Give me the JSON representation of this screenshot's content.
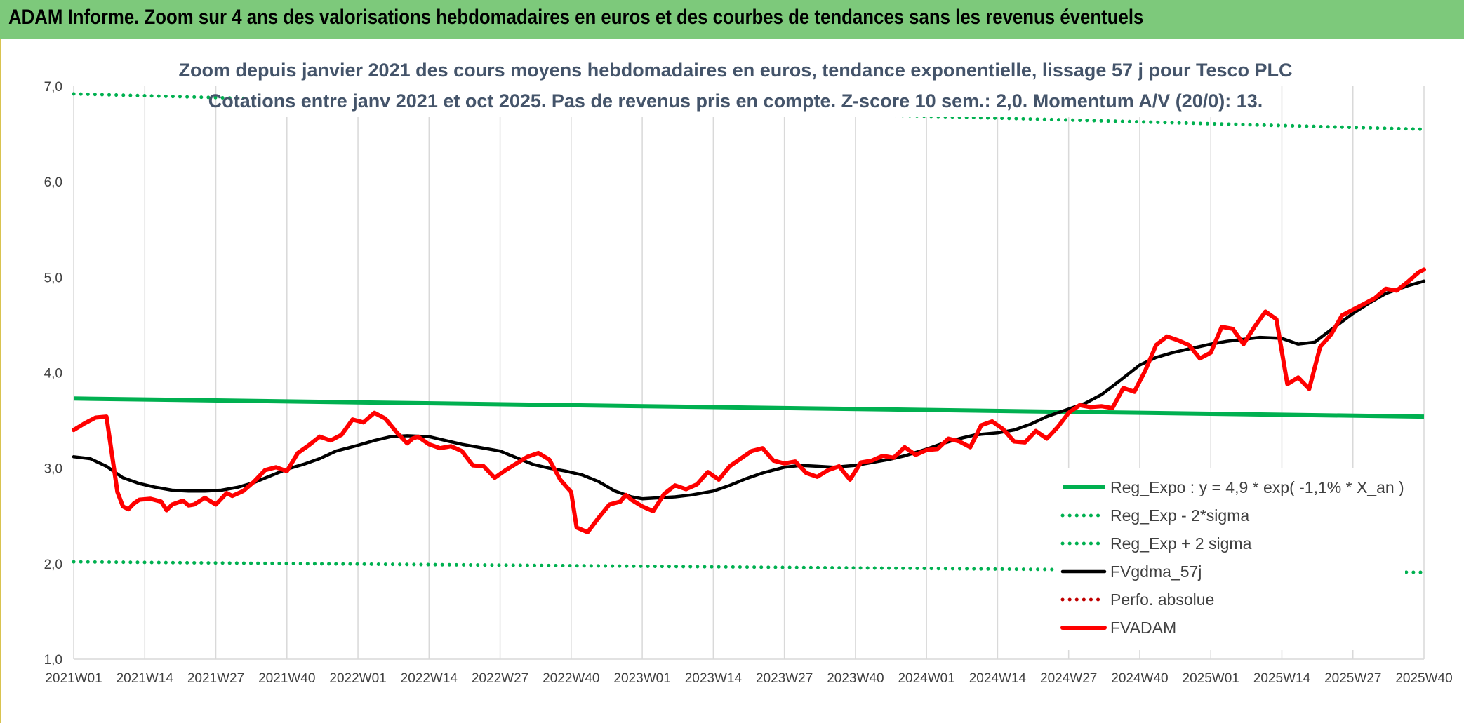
{
  "header": {
    "title": "ADAM Informe. Zoom sur 4 ans des valorisations hebdomadaires en euros et des courbes de tendances sans les revenus éventuels"
  },
  "chart_data": {
    "type": "line",
    "title_line1": "Zoom depuis janvier 2021 des cours moyens hebdomadaires en euros, tendance exponentielle, lissage 57 j pour Tesco PLC",
    "title_line2": "Cotations entre janv 2021 et oct 2025. Pas de revenus pris en compte. Z-score 10 sem.: 2,0. Momentum A/V (20/0): 13.",
    "ylim": [
      1.0,
      7.0
    ],
    "y_ticks": [
      "1,0",
      "2,0",
      "3,0",
      "4,0",
      "5,0",
      "6,0",
      "7,0"
    ],
    "x_ticks": [
      "2021W01",
      "2021W14",
      "2021W27",
      "2021W40",
      "2022W01",
      "2022W14",
      "2022W27",
      "2022W40",
      "2023W01",
      "2023W14",
      "2023W27",
      "2023W40",
      "2024W01",
      "2024W14",
      "2024W27",
      "2024W40",
      "2025W01",
      "2025W14",
      "2025W27",
      "2025W40"
    ],
    "x_range_weeks": [
      0,
      247
    ],
    "gridlines_vertical": true,
    "legend_position": "right",
    "series": [
      {
        "name": "Reg_Expo : y = 4,9 * exp( -1,1% *  X_an )",
        "color": "#00b050",
        "style": "solid-thick",
        "x": [
          0,
          247
        ],
        "y": [
          3.73,
          3.54
        ]
      },
      {
        "name": "Reg_Exp - 2*sigma",
        "color": "#00b050",
        "style": "dotted",
        "x": [
          0,
          247
        ],
        "y": [
          2.02,
          1.91
        ]
      },
      {
        "name": "Reg_Exp + 2 sigma",
        "color": "#00b050",
        "style": "dotted",
        "x": [
          0,
          247
        ],
        "y": [
          6.92,
          6.55
        ]
      },
      {
        "name": "FVgdma_57j",
        "color": "#000000",
        "style": "solid",
        "x": [
          0,
          3,
          6,
          9,
          12,
          15,
          18,
          21,
          24,
          27,
          30,
          33,
          36,
          39,
          42,
          45,
          48,
          52,
          55,
          58,
          61,
          65,
          68,
          71,
          74,
          78,
          81,
          84,
          87,
          90,
          93,
          96,
          99,
          102,
          104,
          107,
          110,
          113,
          117,
          120,
          123,
          126,
          130,
          133,
          136,
          139,
          143,
          146,
          149,
          152,
          156,
          159,
          162,
          165,
          169,
          172,
          175,
          178,
          182,
          185,
          188,
          191,
          195,
          198,
          201,
          204,
          208,
          211,
          214,
          217,
          221,
          224,
          227,
          230,
          234,
          237,
          240,
          244,
          247
        ],
        "y": [
          3.12,
          3.1,
          3.02,
          2.9,
          2.84,
          2.8,
          2.77,
          2.76,
          2.76,
          2.77,
          2.8,
          2.85,
          2.92,
          2.99,
          3.04,
          3.1,
          3.18,
          3.24,
          3.29,
          3.33,
          3.34,
          3.33,
          3.29,
          3.25,
          3.22,
          3.18,
          3.11,
          3.04,
          3.0,
          2.97,
          2.93,
          2.86,
          2.76,
          2.7,
          2.68,
          2.69,
          2.7,
          2.72,
          2.76,
          2.82,
          2.89,
          2.95,
          3.01,
          3.03,
          3.02,
          3.01,
          3.03,
          3.06,
          3.09,
          3.13,
          3.2,
          3.26,
          3.31,
          3.35,
          3.37,
          3.4,
          3.46,
          3.54,
          3.62,
          3.68,
          3.77,
          3.9,
          4.08,
          4.16,
          4.21,
          4.25,
          4.3,
          4.33,
          4.35,
          4.37,
          4.36,
          4.3,
          4.32,
          4.45,
          4.62,
          4.73,
          4.83,
          4.91,
          4.96
        ]
      },
      {
        "name": "Perfo. absolue",
        "color": "#c00000",
        "style": "dotted",
        "x": [],
        "y": []
      },
      {
        "name": "FVADAM",
        "color": "#ff0000",
        "style": "solid-thick",
        "x": [
          0,
          2,
          4,
          6,
          8,
          9,
          10,
          11,
          12,
          14,
          16,
          17,
          18,
          20,
          21,
          22,
          24,
          26,
          28,
          29,
          31,
          33,
          35,
          37,
          39,
          41,
          43,
          45,
          47,
          49,
          51,
          53,
          55,
          57,
          59,
          61,
          62,
          63,
          65,
          67,
          69,
          71,
          73,
          75,
          77,
          79,
          81,
          83,
          85,
          87,
          89,
          91,
          92,
          94,
          96,
          98,
          100,
          101,
          102,
          104,
          106,
          108,
          110,
          112,
          114,
          116,
          118,
          120,
          122,
          124,
          126,
          128,
          130,
          132,
          134,
          136,
          138,
          140,
          142,
          144,
          146,
          148,
          150,
          152,
          154,
          156,
          158,
          160,
          162,
          164,
          166,
          168,
          170,
          172,
          174,
          176,
          178,
          180,
          182,
          184,
          186,
          188,
          190,
          192,
          194,
          196,
          198,
          200,
          202,
          204,
          206,
          208,
          210,
          212,
          214,
          216,
          218,
          220,
          222,
          224,
          226,
          228,
          230,
          232,
          234,
          236,
          238,
          240,
          242,
          244,
          246,
          247
        ],
        "y": [
          3.4,
          3.47,
          3.53,
          3.54,
          2.75,
          2.6,
          2.57,
          2.63,
          2.67,
          2.68,
          2.65,
          2.56,
          2.62,
          2.66,
          2.61,
          2.62,
          2.69,
          2.62,
          2.74,
          2.71,
          2.76,
          2.86,
          2.98,
          3.01,
          2.97,
          3.16,
          3.24,
          3.33,
          3.29,
          3.35,
          3.51,
          3.48,
          3.58,
          3.52,
          3.38,
          3.26,
          3.31,
          3.33,
          3.25,
          3.21,
          3.23,
          3.18,
          3.03,
          3.02,
          2.9,
          2.98,
          3.05,
          3.12,
          3.16,
          3.09,
          2.88,
          2.75,
          2.38,
          2.33,
          2.48,
          2.62,
          2.65,
          2.72,
          2.67,
          2.6,
          2.55,
          2.73,
          2.82,
          2.78,
          2.83,
          2.96,
          2.88,
          3.02,
          3.1,
          3.18,
          3.21,
          3.08,
          3.05,
          3.07,
          2.95,
          2.91,
          2.98,
          3.02,
          2.88,
          3.06,
          3.08,
          3.13,
          3.11,
          3.22,
          3.14,
          3.19,
          3.2,
          3.31,
          3.28,
          3.22,
          3.45,
          3.49,
          3.41,
          3.28,
          3.27,
          3.39,
          3.31,
          3.43,
          3.58,
          3.66,
          3.64,
          3.65,
          3.63,
          3.84,
          3.8,
          4.02,
          4.29,
          4.38,
          4.34,
          4.29,
          4.15,
          4.21,
          4.48,
          4.46,
          4.3,
          4.48,
          4.64,
          4.56,
          3.88,
          3.95,
          3.83,
          4.27,
          4.4,
          4.6,
          4.66,
          4.72,
          4.78,
          4.88,
          4.86,
          4.95,
          5.05,
          5.08
        ]
      }
    ]
  }
}
